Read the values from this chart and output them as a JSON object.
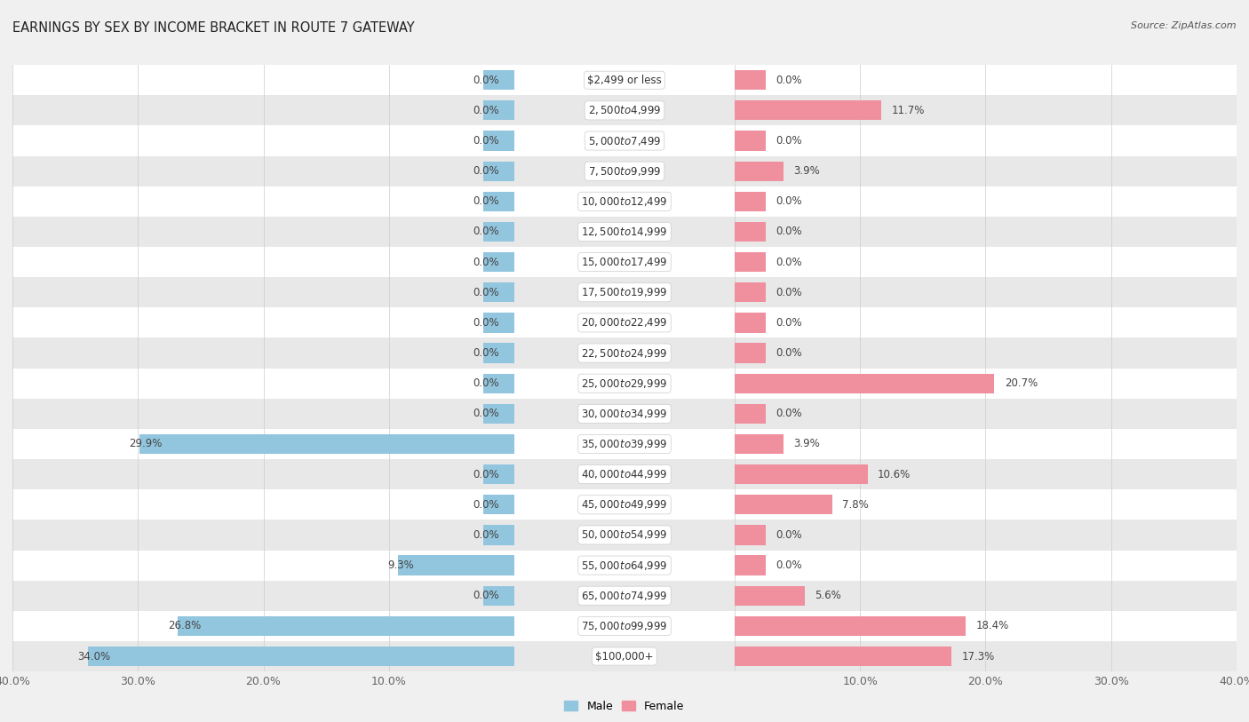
{
  "title": "EARNINGS BY SEX BY INCOME BRACKET IN ROUTE 7 GATEWAY",
  "source": "Source: ZipAtlas.com",
  "categories": [
    "$2,499 or less",
    "$2,500 to $4,999",
    "$5,000 to $7,499",
    "$7,500 to $9,999",
    "$10,000 to $12,499",
    "$12,500 to $14,999",
    "$15,000 to $17,499",
    "$17,500 to $19,999",
    "$20,000 to $22,499",
    "$22,500 to $24,999",
    "$25,000 to $29,999",
    "$30,000 to $34,999",
    "$35,000 to $39,999",
    "$40,000 to $44,999",
    "$45,000 to $49,999",
    "$50,000 to $54,999",
    "$55,000 to $64,999",
    "$65,000 to $74,999",
    "$75,000 to $99,999",
    "$100,000+"
  ],
  "male_values": [
    0.0,
    0.0,
    0.0,
    0.0,
    0.0,
    0.0,
    0.0,
    0.0,
    0.0,
    0.0,
    0.0,
    0.0,
    29.9,
    0.0,
    0.0,
    0.0,
    9.3,
    0.0,
    26.8,
    34.0
  ],
  "female_values": [
    0.0,
    11.7,
    0.0,
    3.9,
    0.0,
    0.0,
    0.0,
    0.0,
    0.0,
    0.0,
    20.7,
    0.0,
    3.9,
    10.6,
    7.8,
    0.0,
    0.0,
    5.6,
    18.4,
    17.3
  ],
  "male_color": "#92c5de",
  "female_color": "#f0909e",
  "male_label": "Male",
  "female_label": "Female",
  "xlim": 40.0,
  "stub": 2.5,
  "background_color": "#f0f0f0",
  "row_white": "#ffffff",
  "row_gray": "#e8e8e8",
  "title_fontsize": 10.5,
  "cat_fontsize": 8.5,
  "val_fontsize": 8.5,
  "axis_fontsize": 9,
  "source_fontsize": 8,
  "legend_fontsize": 9
}
